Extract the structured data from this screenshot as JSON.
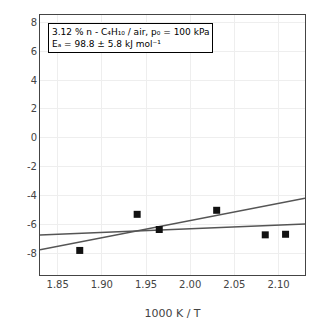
{
  "chart_data": {
    "type": "scatter",
    "xlabel": "1000 K / T",
    "xlim": [
      1.83,
      2.13
    ],
    "ylim": [
      -9.5,
      8.5
    ],
    "xticks": [
      1.85,
      {
        "value": 1.9,
        "label": "1.90"
      },
      1.95,
      {
        "value": 2.0,
        "label": "2.00"
      },
      2.05,
      {
        "value": 2.1,
        "label": "2.10"
      }
    ],
    "yticks": [
      -8,
      -6,
      -4,
      -2,
      0,
      2,
      4,
      6,
      8
    ],
    "grid": true,
    "annotations": [
      "3.12 % n - C₄H₁₀ / air, p₀ = 100 kPa",
      "Eₐ = 98.8 ± 5.8 kJ mol⁻¹"
    ],
    "series": [
      {
        "type": "line",
        "color": "#555555",
        "line_style": "solid",
        "x": [
          1.83,
          2.13
        ],
        "values": [
          -7.75594,
          -4.19134
        ]
      },
      {
        "type": "line",
        "color": "#555555",
        "line_style": "solid",
        "x": [
          1.83,
          2.13
        ],
        "values": [
          -6.7231,
          -5.964
        ]
      },
      {
        "type": "scatter",
        "color": "#111111",
        "marker": "square",
        "x": [
          1.875,
          1.94,
          1.965,
          2.03,
          2.085,
          2.108
        ],
        "values": [
          -7.8,
          -5.3,
          -6.35,
          -5.02,
          -6.72,
          -6.68
        ]
      }
    ]
  }
}
